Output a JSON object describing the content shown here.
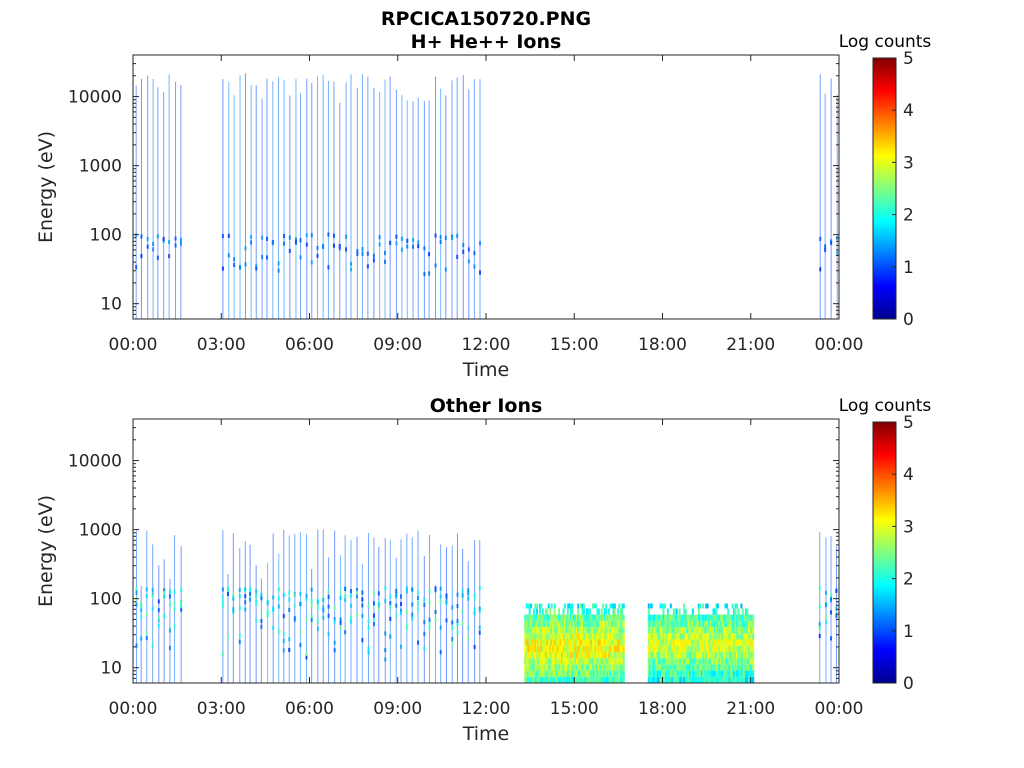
{
  "figure": {
    "filename_title": "RPCICA150720.PNG"
  },
  "colorbar": {
    "label": "Log counts",
    "range": [
      0,
      5
    ],
    "ticks": [
      "0",
      "1",
      "2",
      "3",
      "4",
      "5"
    ],
    "colormap": "jet"
  },
  "chart_data": [
    {
      "type": "heatmap",
      "title": "H+ He++ Ions",
      "xlabel": "Time",
      "ylabel": "Energy (eV)",
      "xlim_hours": [
        0,
        24
      ],
      "x_ticks": [
        "00:00",
        "03:00",
        "06:00",
        "09:00",
        "12:00",
        "15:00",
        "18:00",
        "21:00",
        "00:00"
      ],
      "yscale": "log",
      "ylim": [
        6,
        40000
      ],
      "y_ticks": [
        "10",
        "100",
        "1000",
        "10000"
      ],
      "colorbar_label": "Log counts",
      "clim": [
        0,
        5
      ],
      "active_intervals_hours": [
        [
          0.05,
          1.8
        ],
        [
          3.0,
          11.9
        ],
        [
          23.3,
          24.0
        ]
      ],
      "burst_style": "narrow vertical stripes, mostly ~1 log count, reaching up to ~20000 eV",
      "max_log_counts": 1.5
    },
    {
      "type": "heatmap",
      "title": "Other Ions",
      "xlabel": "Time",
      "ylabel": "Energy (eV)",
      "xlim_hours": [
        0,
        24
      ],
      "x_ticks": [
        "00:00",
        "03:00",
        "06:00",
        "09:00",
        "12:00",
        "15:00",
        "18:00",
        "21:00",
        "00:00"
      ],
      "yscale": "log",
      "ylim": [
        6,
        40000
      ],
      "y_ticks": [
        "10",
        "100",
        "1000",
        "10000"
      ],
      "colorbar_label": "Log counts",
      "clim": [
        0,
        5
      ],
      "stripe_intervals_hours": [
        [
          0.05,
          1.8
        ],
        [
          3.0,
          11.9
        ],
        [
          23.3,
          24.0
        ]
      ],
      "stripe_peak_log_counts": 2.5,
      "dense_blocks": [
        {
          "t_start": 13.3,
          "t_end": 16.7,
          "e_min": 6,
          "e_max": 85,
          "peak_energy_ev": 18,
          "peak_log_counts": 3.2
        },
        {
          "t_start": 17.5,
          "t_end": 21.1,
          "e_min": 6,
          "e_max": 85,
          "peak_energy_ev": 20,
          "peak_log_counts": 3.0
        }
      ]
    }
  ]
}
